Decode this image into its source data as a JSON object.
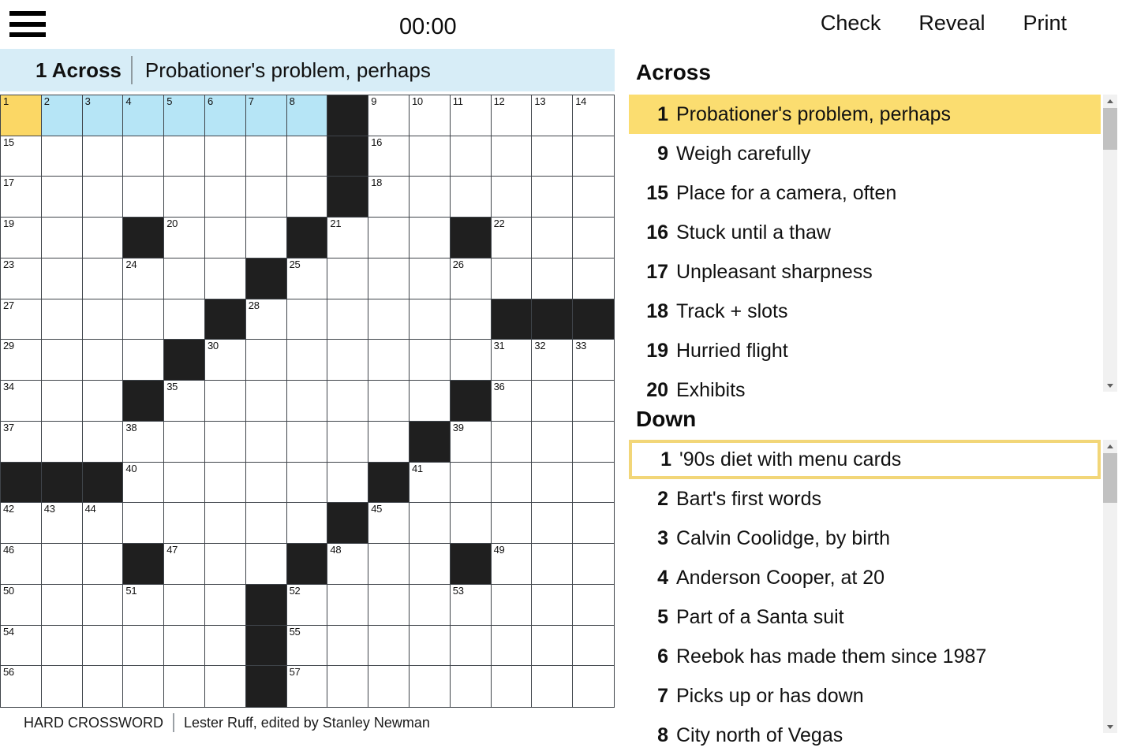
{
  "topbar": {
    "timer": "00:00",
    "check_label": "Check",
    "reveal_label": "Reveal",
    "print_label": "Print"
  },
  "clue_bar": {
    "number_label": "1 Across",
    "text": "Probationer's problem, perhaps"
  },
  "attribution": {
    "title": "HARD CROSSWORD",
    "byline": "Lester Ruff, edited by Stanley Newman"
  },
  "colors": {
    "selected_cell": "#fbd765",
    "highlighted_cell": "#b6e5f6",
    "clue_highlight": "#fbdd70",
    "down_border": "#f2d678",
    "clue_bar_bg": "#d7edf7",
    "black_cell": "#1f1f1f",
    "grid_line": "#3f444a"
  },
  "grid": {
    "rows": 15,
    "cols": 15,
    "selected_cell": [
      1,
      1
    ],
    "highlighted_cells": [
      [
        1,
        2
      ],
      [
        1,
        3
      ],
      [
        1,
        4
      ],
      [
        1,
        5
      ],
      [
        1,
        6
      ],
      [
        1,
        7
      ],
      [
        1,
        8
      ]
    ],
    "black_cells": [
      [
        1,
        9
      ],
      [
        2,
        9
      ],
      [
        3,
        9
      ],
      [
        4,
        4
      ],
      [
        4,
        8
      ],
      [
        4,
        12
      ],
      [
        5,
        7
      ],
      [
        6,
        6
      ],
      [
        6,
        13
      ],
      [
        6,
        14
      ],
      [
        6,
        15
      ],
      [
        7,
        5
      ],
      [
        8,
        4
      ],
      [
        8,
        12
      ],
      [
        9,
        11
      ],
      [
        10,
        1
      ],
      [
        10,
        2
      ],
      [
        10,
        3
      ],
      [
        10,
        10
      ],
      [
        11,
        9
      ],
      [
        12,
        4
      ],
      [
        12,
        8
      ],
      [
        12,
        12
      ],
      [
        13,
        7
      ],
      [
        14,
        7
      ],
      [
        15,
        7
      ]
    ],
    "numbers": [
      [
        1,
        1,
        1
      ],
      [
        1,
        2,
        2
      ],
      [
        1,
        3,
        3
      ],
      [
        1,
        4,
        4
      ],
      [
        1,
        5,
        5
      ],
      [
        1,
        6,
        6
      ],
      [
        1,
        7,
        7
      ],
      [
        1,
        8,
        8
      ],
      [
        1,
        10,
        9
      ],
      [
        1,
        11,
        10
      ],
      [
        1,
        12,
        11
      ],
      [
        1,
        13,
        12
      ],
      [
        1,
        14,
        13
      ],
      [
        1,
        15,
        14
      ],
      [
        2,
        1,
        15
      ],
      [
        2,
        10,
        16
      ],
      [
        3,
        1,
        17
      ],
      [
        3,
        10,
        18
      ],
      [
        4,
        1,
        19
      ],
      [
        4,
        5,
        20
      ],
      [
        4,
        9,
        21
      ],
      [
        4,
        13,
        22
      ],
      [
        5,
        1,
        23
      ],
      [
        5,
        4,
        24
      ],
      [
        5,
        8,
        25
      ],
      [
        5,
        12,
        26
      ],
      [
        6,
        1,
        27
      ],
      [
        6,
        7,
        28
      ],
      [
        7,
        1,
        29
      ],
      [
        7,
        6,
        30
      ],
      [
        7,
        13,
        31
      ],
      [
        7,
        14,
        32
      ],
      [
        7,
        15,
        33
      ],
      [
        8,
        1,
        34
      ],
      [
        8,
        5,
        35
      ],
      [
        8,
        13,
        36
      ],
      [
        9,
        1,
        37
      ],
      [
        9,
        4,
        38
      ],
      [
        9,
        12,
        39
      ],
      [
        10,
        4,
        40
      ],
      [
        10,
        11,
        41
      ],
      [
        11,
        1,
        42
      ],
      [
        11,
        2,
        43
      ],
      [
        11,
        3,
        44
      ],
      [
        11,
        10,
        45
      ],
      [
        12,
        1,
        46
      ],
      [
        12,
        5,
        47
      ],
      [
        12,
        9,
        48
      ],
      [
        12,
        13,
        49
      ],
      [
        13,
        1,
        50
      ],
      [
        13,
        4,
        51
      ],
      [
        13,
        8,
        52
      ],
      [
        13,
        12,
        53
      ],
      [
        14,
        1,
        54
      ],
      [
        14,
        8,
        55
      ],
      [
        15,
        1,
        56
      ],
      [
        15,
        8,
        57
      ]
    ]
  },
  "across": {
    "heading": "Across",
    "clues": [
      {
        "number": "1",
        "text": "Probationer's problem, perhaps",
        "state": "selected"
      },
      {
        "number": "9",
        "text": "Weigh carefully",
        "state": "normal"
      },
      {
        "number": "15",
        "text": "Place for a camera, often",
        "state": "normal"
      },
      {
        "number": "16",
        "text": "Stuck until a thaw",
        "state": "normal"
      },
      {
        "number": "17",
        "text": "Unpleasant sharpness",
        "state": "normal"
      },
      {
        "number": "18",
        "text": "Track + slots",
        "state": "normal"
      },
      {
        "number": "19",
        "text": "Hurried flight",
        "state": "normal"
      },
      {
        "number": "20",
        "text": "Exhibits",
        "state": "normal"
      }
    ]
  },
  "down": {
    "heading": "Down",
    "clues": [
      {
        "number": "1",
        "text": "'90s diet with menu cards",
        "state": "cross"
      },
      {
        "number": "2",
        "text": "Bart's first words",
        "state": "normal"
      },
      {
        "number": "3",
        "text": "Calvin Coolidge, by birth",
        "state": "normal"
      },
      {
        "number": "4",
        "text": "Anderson Cooper, at 20",
        "state": "normal"
      },
      {
        "number": "5",
        "text": "Part of a Santa suit",
        "state": "normal"
      },
      {
        "number": "6",
        "text": "Reebok has made them since 1987",
        "state": "normal"
      },
      {
        "number": "7",
        "text": "Picks up or has down",
        "state": "normal"
      },
      {
        "number": "8",
        "text": "City north of Vegas",
        "state": "normal"
      }
    ]
  }
}
